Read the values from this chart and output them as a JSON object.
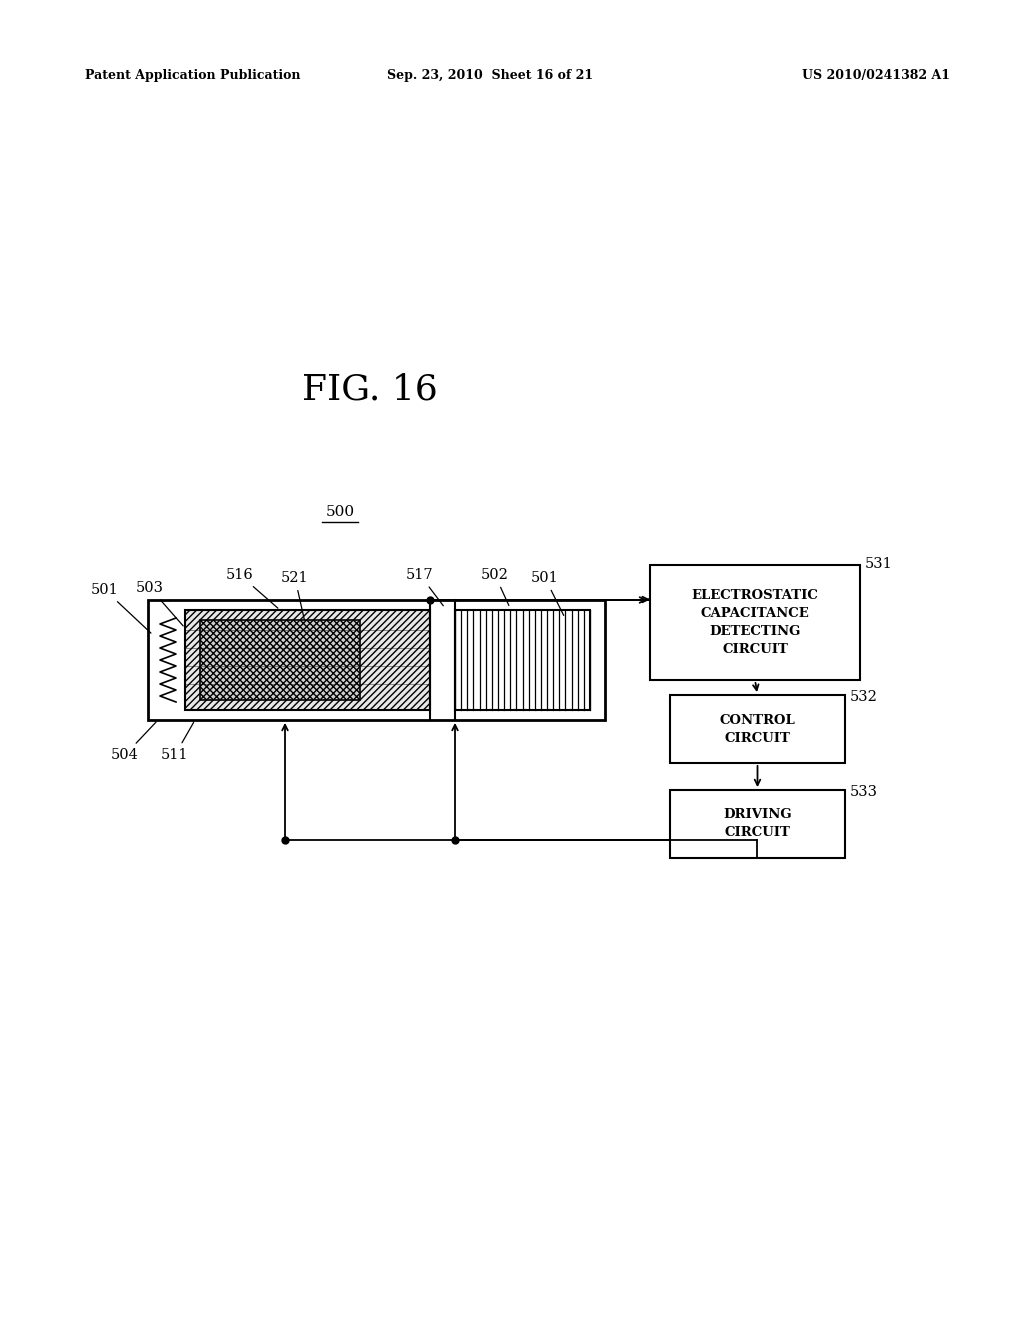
{
  "header_left": "Patent Application Publication",
  "header_center": "Sep. 23, 2010  Sheet 16 of 21",
  "header_right": "US 2010/0241382 A1",
  "fig_title": "FIG. 16",
  "label_500": "500",
  "label_531": "531",
  "label_532": "532",
  "label_533": "533",
  "label_501a": "501",
  "label_501b": "501",
  "label_502": "502",
  "label_503": "503",
  "label_504": "504",
  "label_511": "511",
  "label_516": "516",
  "label_517": "517",
  "label_521": "521",
  "box531_text": "ELECTROSTATIC\nCAPACITANCE\nDETECTING\nCIRCUIT",
  "box532_text": "CONTROL\nCIRCUIT",
  "box533_text": "DRIVING\nCIRCUIT",
  "bg_color": "#ffffff",
  "line_color": "#000000"
}
